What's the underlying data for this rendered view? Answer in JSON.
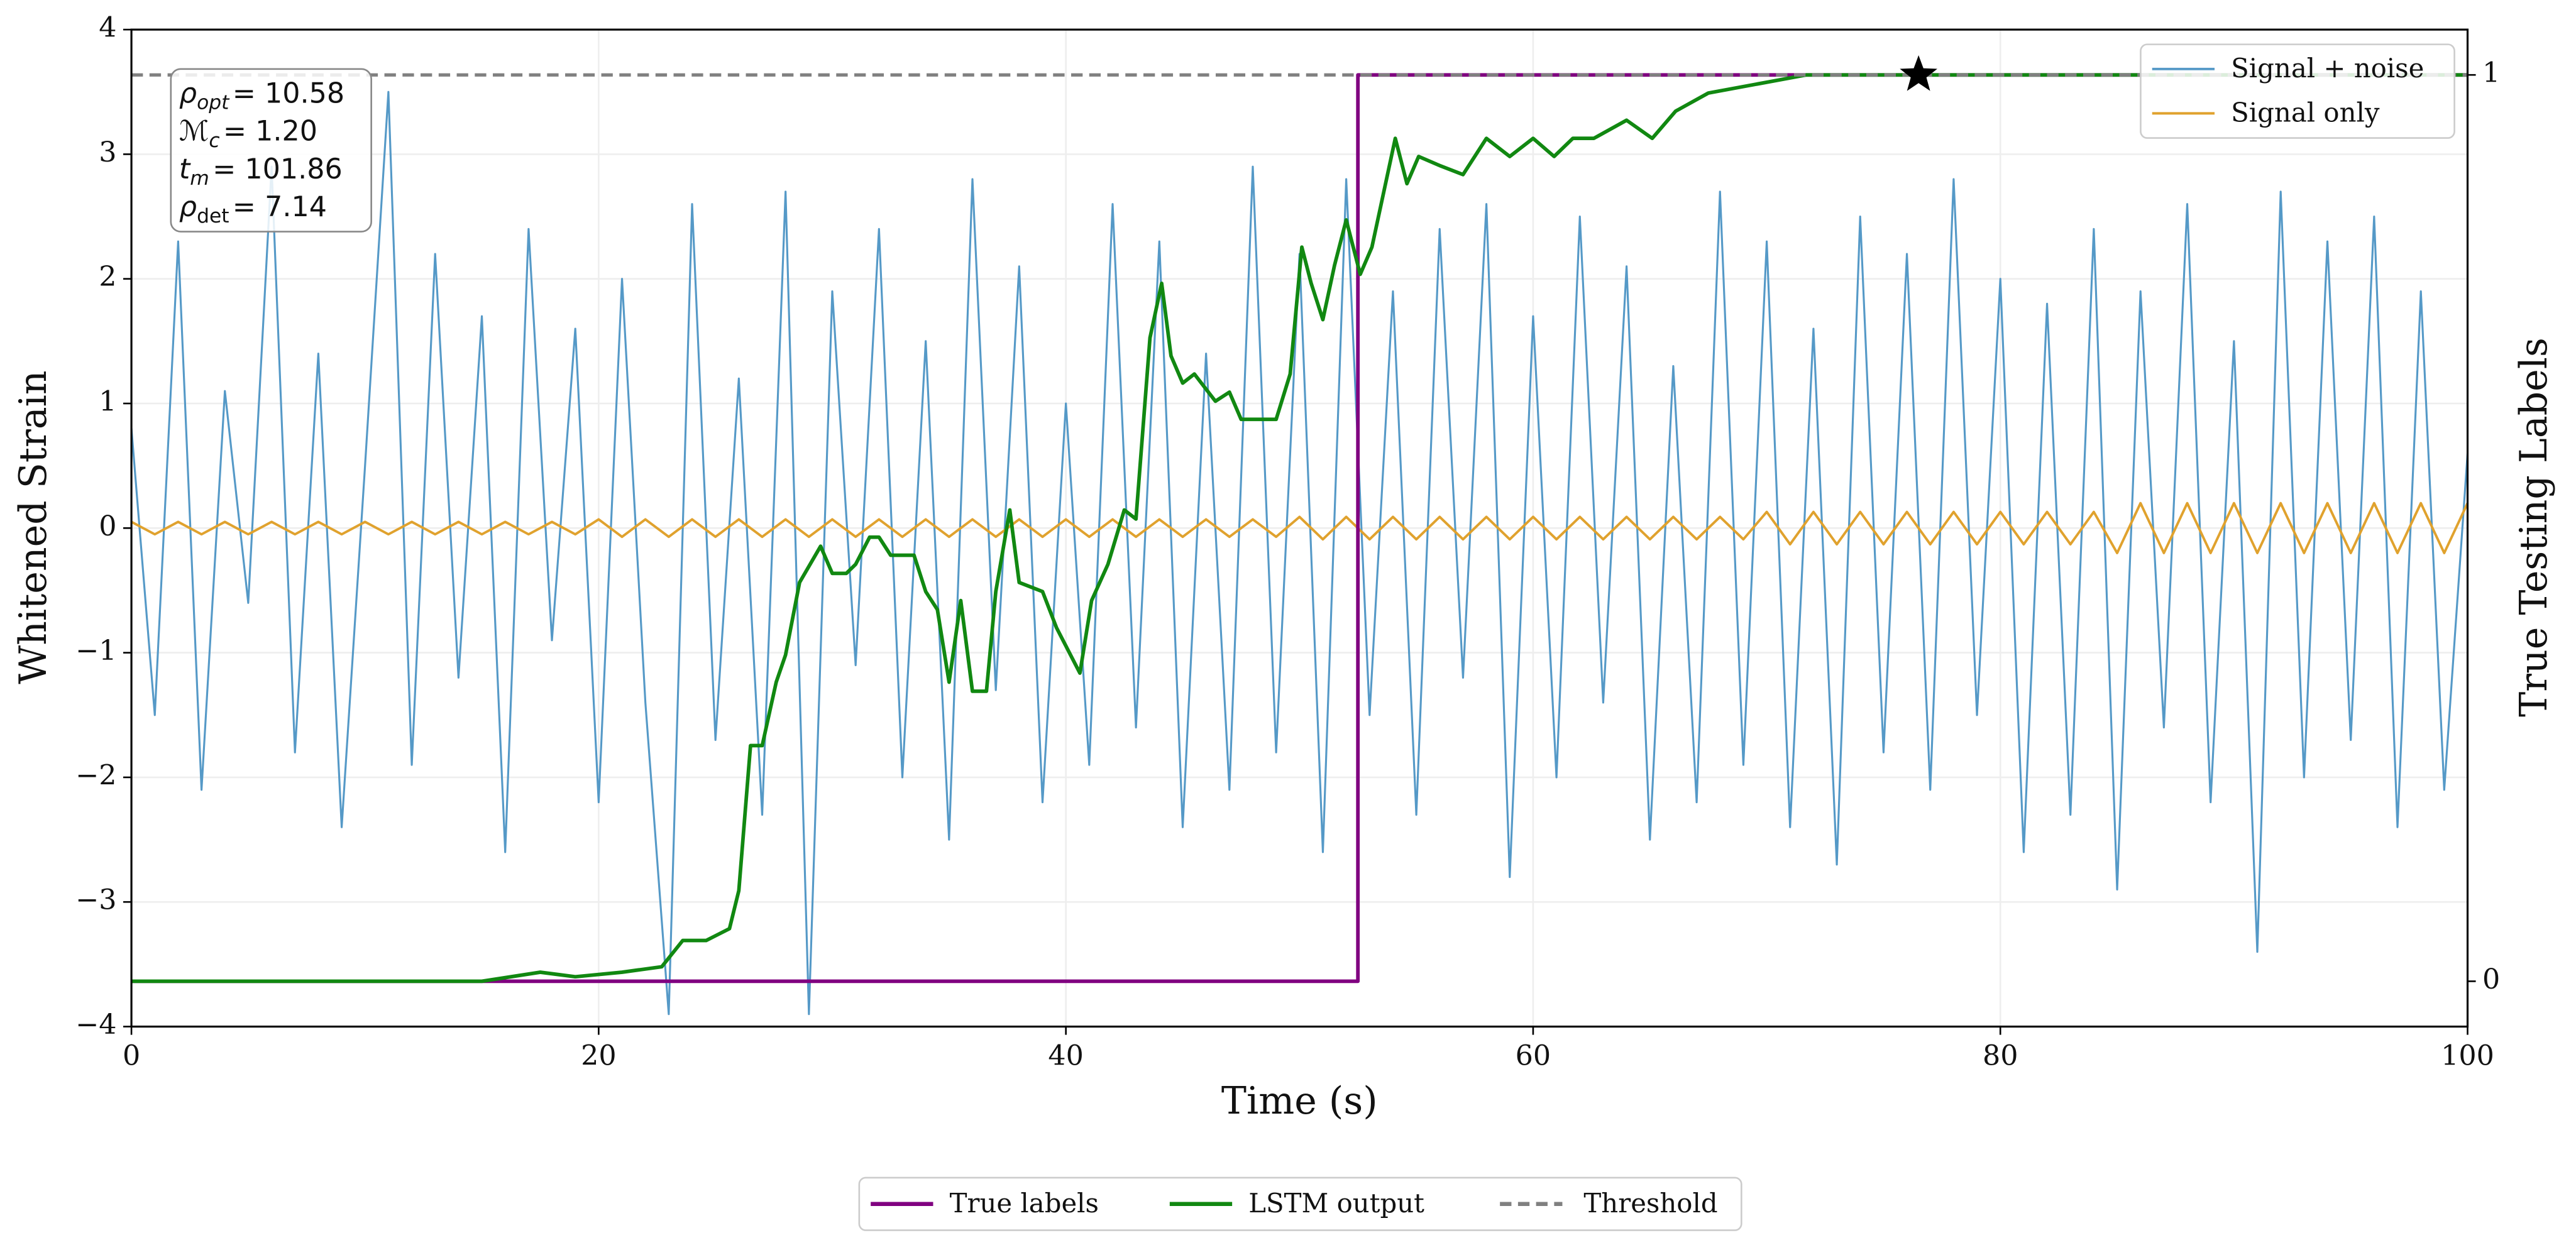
{
  "chart_data": {
    "type": "line",
    "xlabel": "Time (s)",
    "ylabel": "Whitened Strain",
    "y2label": "True Testing Labels",
    "xlim": [
      0,
      100
    ],
    "ylim": [
      -4,
      4
    ],
    "y2lim": [
      -0.05,
      1.05
    ],
    "xticks": [
      0,
      20,
      40,
      60,
      80,
      100
    ],
    "yticks": [
      {
        "value": -4,
        "label": "−4"
      },
      {
        "value": -3,
        "label": "−3"
      },
      {
        "value": -2,
        "label": "−2"
      },
      {
        "value": -1,
        "label": "−1"
      },
      0,
      1,
      2,
      3,
      4
    ],
    "y2ticks": [
      0,
      1
    ],
    "grid": true,
    "legend": "upper right",
    "series": [
      {
        "name": "Signal + noise",
        "color": "#5599c7",
        "x": [
          0,
          1,
          2,
          3,
          4,
          5,
          6,
          7,
          8,
          9,
          10,
          11,
          12,
          13,
          14,
          15,
          16,
          17,
          18,
          19,
          20,
          21,
          22,
          23,
          24,
          25,
          26,
          27,
          28,
          29,
          30,
          31,
          32,
          33,
          34,
          35,
          36,
          37,
          38,
          39,
          40,
          41,
          42,
          43,
          44,
          45,
          46,
          47,
          48,
          49,
          50,
          51,
          52,
          53,
          54,
          55,
          56,
          57,
          58,
          59,
          60,
          61,
          62,
          63,
          64,
          65,
          66,
          67,
          68,
          69,
          70,
          71,
          72,
          73,
          74,
          75,
          76,
          77,
          78,
          79,
          80,
          81,
          82,
          83,
          84,
          85,
          86,
          87,
          88,
          89,
          90,
          91,
          92,
          93,
          94,
          95,
          96,
          97,
          98,
          99,
          100
        ],
        "values": [
          0.8,
          -1.5,
          2.3,
          -2.1,
          1.1,
          -0.6,
          2.9,
          -1.8,
          1.4,
          -2.4,
          0.5,
          3.5,
          -1.9,
          2.2,
          -1.2,
          1.7,
          -2.6,
          2.4,
          -0.9,
          1.6,
          -2.2,
          2.0,
          -1.4,
          -3.9,
          2.6,
          -1.7,
          1.2,
          -2.3,
          2.7,
          -3.9,
          1.9,
          -1.1,
          2.4,
          -2.0,
          1.5,
          -2.5,
          2.8,
          -1.3,
          2.1,
          -2.2,
          1.0,
          -1.9,
          2.6,
          -1.6,
          2.3,
          -2.4,
          1.4,
          -2.1,
          2.9,
          -1.8,
          2.2,
          -2.6,
          2.8,
          -1.5,
          1.9,
          -2.3,
          2.4,
          -1.2,
          2.6,
          -2.8,
          1.7,
          -2.0,
          2.5,
          -1.4,
          2.1,
          -2.5,
          1.3,
          -2.2,
          2.7,
          -1.9,
          2.3,
          -2.4,
          1.6,
          -2.7,
          2.5,
          -1.8,
          2.2,
          -2.1,
          2.8,
          -1.5,
          2.0,
          -2.6,
          1.8,
          -2.3,
          2.4,
          -2.9,
          1.9,
          -1.6,
          2.6,
          -2.2,
          1.5,
          -3.4,
          2.7,
          -2.0,
          2.3,
          -1.7,
          2.5,
          -2.4,
          1.9,
          -2.1,
          0.6
        ]
      },
      {
        "name": "Signal only",
        "color": "#e0a22e",
        "x": [
          0,
          1,
          2,
          3,
          4,
          5,
          6,
          7,
          8,
          9,
          10,
          11,
          12,
          13,
          14,
          15,
          16,
          17,
          18,
          19,
          20,
          21,
          22,
          23,
          24,
          25,
          26,
          27,
          28,
          29,
          30,
          31,
          32,
          33,
          34,
          35,
          36,
          37,
          38,
          39,
          40,
          41,
          42,
          43,
          44,
          45,
          46,
          47,
          48,
          49,
          50,
          51,
          52,
          53,
          54,
          55,
          56,
          57,
          58,
          59,
          60,
          61,
          62,
          63,
          64,
          65,
          66,
          67,
          68,
          69,
          70,
          71,
          72,
          73,
          74,
          75,
          76,
          77,
          78,
          79,
          80,
          81,
          82,
          83,
          84,
          85,
          86,
          87,
          88,
          89,
          90,
          91,
          92,
          93,
          94,
          95,
          96,
          97,
          98,
          99,
          100
        ],
        "values": [
          0.05,
          -0.05,
          0.05,
          -0.05,
          0.05,
          -0.05,
          0.05,
          -0.05,
          0.05,
          -0.05,
          0.05,
          -0.05,
          0.05,
          -0.05,
          0.05,
          -0.05,
          0.05,
          -0.05,
          0.05,
          -0.05,
          0.07,
          -0.07,
          0.07,
          -0.07,
          0.07,
          -0.07,
          0.07,
          -0.07,
          0.07,
          -0.07,
          0.07,
          -0.07,
          0.07,
          -0.07,
          0.07,
          -0.07,
          0.07,
          -0.07,
          0.07,
          -0.07,
          0.07,
          -0.07,
          0.07,
          -0.07,
          0.07,
          -0.07,
          0.07,
          -0.07,
          0.07,
          -0.07,
          0.09,
          -0.09,
          0.09,
          -0.09,
          0.09,
          -0.09,
          0.09,
          -0.09,
          0.09,
          -0.09,
          0.09,
          -0.09,
          0.09,
          -0.09,
          0.09,
          -0.09,
          0.09,
          -0.09,
          0.09,
          -0.09,
          0.13,
          -0.13,
          0.13,
          -0.13,
          0.13,
          -0.13,
          0.13,
          -0.13,
          0.13,
          -0.13,
          0.13,
          -0.13,
          0.13,
          -0.13,
          0.13,
          -0.2,
          0.2,
          -0.2,
          0.2,
          -0.2,
          0.2,
          -0.2,
          0.2,
          -0.2,
          0.2,
          -0.2,
          0.2,
          -0.2,
          0.2,
          -0.2,
          0.2
        ]
      },
      {
        "name": "True labels",
        "color": "#800080",
        "axis": "y2",
        "x": [
          0,
          52.5,
          52.5,
          100
        ],
        "values": [
          0,
          0,
          1,
          1
        ]
      },
      {
        "name": "LSTM output",
        "color": "#118811",
        "axis": "y2",
        "x": [
          0,
          15,
          17.5,
          19,
          21,
          22.7,
          23.6,
          24.6,
          25.6,
          26,
          26.5,
          27,
          27.6,
          28,
          28.6,
          29.5,
          30,
          30.6,
          31,
          31.6,
          32,
          32.5,
          33.5,
          34,
          34.5,
          35,
          35.5,
          36,
          36.6,
          37,
          37.6,
          38,
          39,
          39.6,
          40.6,
          41.1,
          41.8,
          42.5,
          43,
          43.6,
          44.1,
          44.5,
          45,
          45.5,
          46.4,
          47,
          47.5,
          48,
          48.5,
          49,
          49.6,
          50.1,
          50.5,
          51,
          51.5,
          52,
          52.6,
          53.1,
          54.1,
          54.6,
          55.1,
          56,
          57,
          58,
          59,
          60,
          60.9,
          61.7,
          62.6,
          64,
          65.1,
          66.1,
          67.5,
          69.6,
          71.7,
          76.5,
          100
        ],
        "values": [
          0,
          0,
          0.01,
          0.005,
          0.01,
          0.016,
          0.045,
          0.045,
          0.058,
          0.1,
          0.26,
          0.26,
          0.33,
          0.36,
          0.44,
          0.48,
          0.45,
          0.45,
          0.46,
          0.49,
          0.49,
          0.47,
          0.47,
          0.43,
          0.41,
          0.33,
          0.42,
          0.32,
          0.32,
          0.43,
          0.52,
          0.44,
          0.43,
          0.39,
          0.34,
          0.42,
          0.46,
          0.52,
          0.51,
          0.71,
          0.77,
          0.69,
          0.66,
          0.67,
          0.64,
          0.65,
          0.62,
          0.62,
          0.62,
          0.62,
          0.67,
          0.81,
          0.77,
          0.73,
          0.79,
          0.84,
          0.78,
          0.81,
          0.93,
          0.88,
          0.91,
          0.9,
          0.89,
          0.93,
          0.91,
          0.93,
          0.91,
          0.93,
          0.93,
          0.95,
          0.93,
          0.96,
          0.98,
          0.99,
          1.0,
          1.0,
          1.0
        ]
      }
    ],
    "threshold": {
      "name": "Threshold",
      "value": 1,
      "axis": "y2",
      "color": "#808080"
    },
    "marker": {
      "x": 76.5,
      "value": 1,
      "axis": "y2",
      "color": "#000000"
    },
    "annotation": [
      {
        "symbol": "ρ",
        "sub": "opt",
        "value": "= 10.58"
      },
      {
        "symbol": "ℳ",
        "sub": "c",
        "value": "= 1.20"
      },
      {
        "symbol": "t",
        "sub": "m",
        "value": "= 101.86"
      },
      {
        "symbol": "ρ",
        "sub": "det",
        "value": "= 7.14"
      }
    ]
  }
}
